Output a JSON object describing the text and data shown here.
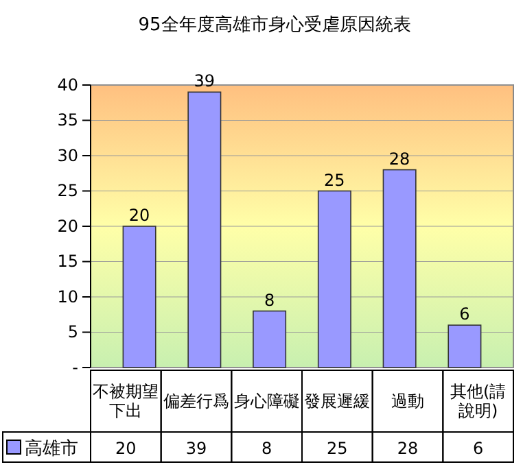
{
  "chart_data": {
    "type": "bar",
    "title": "95全年度高雄市身心受虐原因統表",
    "categories": [
      "不被期望下出",
      "偏差行爲",
      "身心障礙",
      "發展遲緩",
      "過動",
      "其他(請說明)"
    ],
    "series": [
      {
        "name": "高雄市",
        "color": "#9999ff",
        "values": [
          20,
          39,
          8,
          25,
          28,
          6
        ],
        "value_labels": [
          "20",
          "39",
          "8",
          "25",
          "28",
          "6"
        ]
      }
    ],
    "ylim": [
      0,
      40
    ],
    "yticks": [
      {
        "value": 0,
        "label": "-"
      },
      5,
      10,
      15,
      20,
      25,
      30,
      35,
      40
    ],
    "grid": "y",
    "data_labels": true,
    "legend": "bottom"
  }
}
